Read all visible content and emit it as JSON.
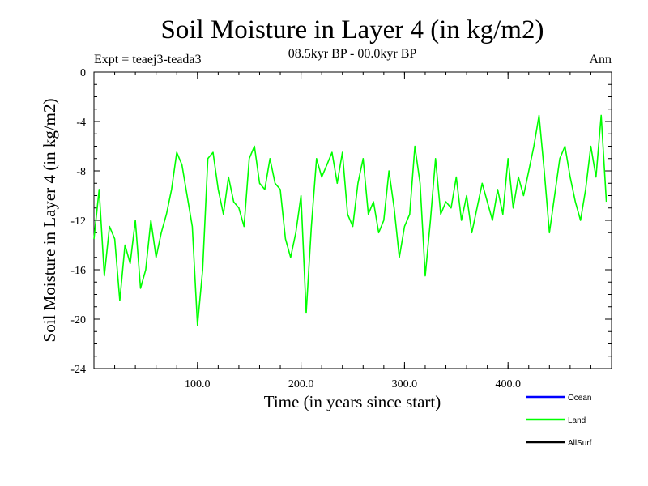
{
  "chart_data": {
    "type": "line",
    "title": "Soil Moisture in Layer 4 (in kg/m2)",
    "subtitle": "08.5kyr BP - 00.0kyr BP",
    "left_note": "Expt = teaej3-teada3",
    "right_note": "Ann",
    "xlabel": "Time (in years since start)",
    "ylabel": "Soil Moisture in Layer 4 (in kg/m2)",
    "xlim": [
      0,
      500
    ],
    "ylim": [
      -24,
      0
    ],
    "x_ticks": [
      100,
      200,
      300,
      400
    ],
    "x_tick_labels": [
      "100.0",
      "200.0",
      "300.0",
      "400.0"
    ],
    "y_ticks": [
      0,
      -4,
      -8,
      -12,
      -16,
      -20,
      -24
    ],
    "y_tick_labels": [
      "0",
      "-4",
      "-8",
      "-12",
      "-16",
      "-20",
      "-24"
    ],
    "legend": [
      {
        "label": "Ocean",
        "color": "#0000ff"
      },
      {
        "label": "Land",
        "color": "#00ff00"
      },
      {
        "label": "AllSurf",
        "color": "#000000"
      }
    ],
    "series": [
      {
        "name": "Land",
        "color": "#00ff00",
        "x": [
          0,
          5,
          10,
          15,
          20,
          25,
          30,
          35,
          40,
          45,
          50,
          55,
          60,
          65,
          70,
          75,
          80,
          85,
          90,
          95,
          100,
          105,
          110,
          115,
          120,
          125,
          130,
          135,
          140,
          145,
          150,
          155,
          160,
          165,
          170,
          175,
          180,
          185,
          190,
          195,
          200,
          205,
          210,
          215,
          220,
          225,
          230,
          235,
          240,
          245,
          250,
          255,
          260,
          265,
          270,
          275,
          280,
          285,
          290,
          295,
          300,
          305,
          310,
          315,
          320,
          325,
          330,
          335,
          340,
          345,
          350,
          355,
          360,
          365,
          370,
          375,
          380,
          385,
          390,
          395,
          400,
          405,
          410,
          415,
          420,
          425,
          430,
          435,
          440,
          445,
          450,
          455,
          460,
          465,
          470,
          475,
          480,
          485,
          490,
          495
        ],
        "values": [
          -13.5,
          -9.5,
          -16.5,
          -12.5,
          -13.5,
          -18.5,
          -14.0,
          -15.5,
          -12.0,
          -17.5,
          -16.0,
          -12.0,
          -15.0,
          -13.0,
          -11.5,
          -9.5,
          -6.5,
          -7.5,
          -10.0,
          -12.5,
          -20.5,
          -16.0,
          -7.0,
          -6.5,
          -9.5,
          -11.5,
          -8.5,
          -10.5,
          -11.0,
          -12.5,
          -7.0,
          -6.0,
          -9.0,
          -9.5,
          -7.0,
          -9.0,
          -9.5,
          -13.5,
          -15.0,
          -13.0,
          -10.0,
          -19.5,
          -12.5,
          -7.0,
          -8.5,
          -7.5,
          -6.5,
          -9.0,
          -6.5,
          -11.5,
          -12.5,
          -9.0,
          -7.0,
          -11.5,
          -10.5,
          -13.0,
          -12.0,
          -8.0,
          -11.0,
          -15.0,
          -12.5,
          -11.5,
          -6.0,
          -9.0,
          -16.5,
          -12.0,
          -7.0,
          -11.5,
          -10.5,
          -11.0,
          -8.5,
          -12.0,
          -10.0,
          -13.0,
          -11.0,
          -9.0,
          -10.5,
          -12.0,
          -9.5,
          -11.5,
          -7.0,
          -11.0,
          -8.5,
          -10.0,
          -8.0,
          -6.0,
          -3.5,
          -8.0,
          -13.0,
          -10.0,
          -7.0,
          -6.0,
          -8.5,
          -10.5,
          -12.0,
          -9.5,
          -6.0,
          -8.5,
          -3.5,
          -10.5
        ]
      }
    ]
  }
}
